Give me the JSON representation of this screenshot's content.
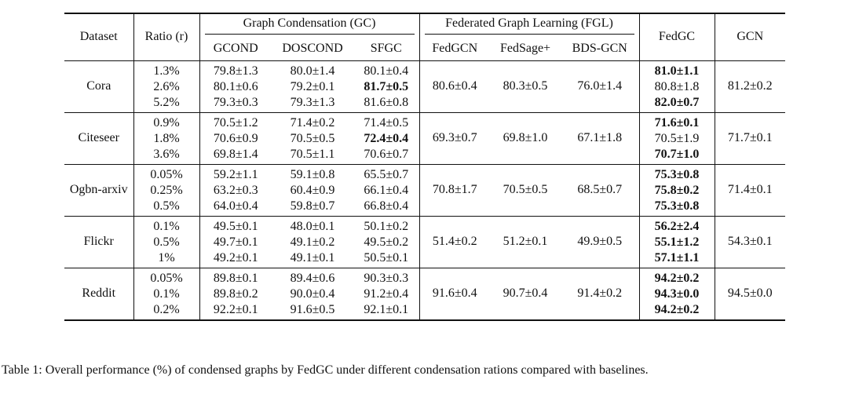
{
  "table": {
    "headers": {
      "dataset": "Dataset",
      "ratio": "Ratio (r)",
      "gc_group": "Graph Condensation (GC)",
      "fgl_group": "Federated Graph Learning (FGL)",
      "fedgc": "FedGC",
      "gcn": "GCN",
      "gc_methods": [
        "GCOND",
        "DOSCOND",
        "SFGC"
      ],
      "fgl_methods": [
        "FedGCN",
        "FedSage+",
        "BDS-GCN"
      ]
    },
    "rows": [
      {
        "dataset": "Cora",
        "ratios": [
          "1.3%",
          "2.6%",
          "5.2%"
        ],
        "gcond": [
          "79.8±1.3",
          "80.1±0.6",
          "79.3±0.3"
        ],
        "doscond": [
          "80.0±1.4",
          "79.2±0.1",
          "79.3±1.3"
        ],
        "sfgc": [
          "80.1±0.4",
          "81.7±0.5",
          "81.6±0.8"
        ],
        "sfgc_bold": [
          false,
          true,
          false
        ],
        "fedgcn": "80.6±0.4",
        "fedsage": "80.3±0.5",
        "bdsgcn": "76.0±1.4",
        "fedgc": [
          "81.0±1.1",
          "80.8±1.8",
          "82.0±0.7"
        ],
        "fedgc_bold": [
          true,
          false,
          true
        ],
        "gcn": "81.2±0.2"
      },
      {
        "dataset": "Citeseer",
        "ratios": [
          "0.9%",
          "1.8%",
          "3.6%"
        ],
        "gcond": [
          "70.5±1.2",
          "70.6±0.9",
          "69.8±1.4"
        ],
        "doscond": [
          "71.4±0.2",
          "70.5±0.5",
          "70.5±1.1"
        ],
        "sfgc": [
          "71.4±0.5",
          "72.4±0.4",
          "70.6±0.7"
        ],
        "sfgc_bold": [
          false,
          true,
          false
        ],
        "fedgcn": "69.3±0.7",
        "fedsage": "69.8±1.0",
        "bdsgcn": "67.1±1.8",
        "fedgc": [
          "71.6±0.1",
          "70.5±1.9",
          "70.7±1.0"
        ],
        "fedgc_bold": [
          true,
          false,
          true
        ],
        "gcn": "71.7±0.1"
      },
      {
        "dataset": "Ogbn-arxiv",
        "ratios": [
          "0.05%",
          "0.25%",
          "0.5%"
        ],
        "gcond": [
          "59.2±1.1",
          "63.2±0.3",
          "64.0±0.4"
        ],
        "doscond": [
          "59.1±0.8",
          "60.4±0.9",
          "59.8±0.7"
        ],
        "sfgc": [
          "65.5±0.7",
          "66.1±0.4",
          "66.8±0.4"
        ],
        "sfgc_bold": [
          false,
          false,
          false
        ],
        "fedgcn": "70.8±1.7",
        "fedsage": "70.5±0.5",
        "bdsgcn": "68.5±0.7",
        "fedgc": [
          "75.3±0.8",
          "75.8±0.2",
          "75.3±0.8"
        ],
        "fedgc_bold": [
          true,
          true,
          true
        ],
        "gcn": "71.4±0.1"
      },
      {
        "dataset": "Flickr",
        "ratios": [
          "0.1%",
          "0.5%",
          "1%"
        ],
        "gcond": [
          "49.5±0.1",
          "49.7±0.1",
          "49.2±0.1"
        ],
        "doscond": [
          "48.0±0.1",
          "49.1±0.2",
          "49.1±0.1"
        ],
        "sfgc": [
          "50.1±0.2",
          "49.5±0.2",
          "50.5±0.1"
        ],
        "sfgc_bold": [
          false,
          false,
          false
        ],
        "fedgcn": "51.4±0.2",
        "fedsage": "51.2±0.1",
        "bdsgcn": "49.9±0.5",
        "fedgc": [
          "56.2±2.4",
          "55.1±1.2",
          "57.1±1.1"
        ],
        "fedgc_bold": [
          true,
          true,
          true
        ],
        "gcn": "54.3±0.1"
      },
      {
        "dataset": "Reddit",
        "ratios": [
          "0.05%",
          "0.1%",
          "0.2%"
        ],
        "gcond": [
          "89.8±0.1",
          "89.8±0.2",
          "92.2±0.1"
        ],
        "doscond": [
          "89.4±0.6",
          "90.0±0.4",
          "91.6±0.5"
        ],
        "sfgc": [
          "90.3±0.3",
          "91.2±0.4",
          "92.1±0.1"
        ],
        "sfgc_bold": [
          false,
          false,
          false
        ],
        "fedgcn": "91.6±0.4",
        "fedsage": "90.7±0.4",
        "bdsgcn": "91.4±0.2",
        "fedgc": [
          "94.2±0.2",
          "94.3±0.0",
          "94.2±0.2"
        ],
        "fedgc_bold": [
          true,
          true,
          true
        ],
        "gcn": "94.5±0.0"
      }
    ]
  },
  "caption": "Table 1: Overall performance (%) of condensed graphs by FedGC under different condensation rations compared with baselines."
}
